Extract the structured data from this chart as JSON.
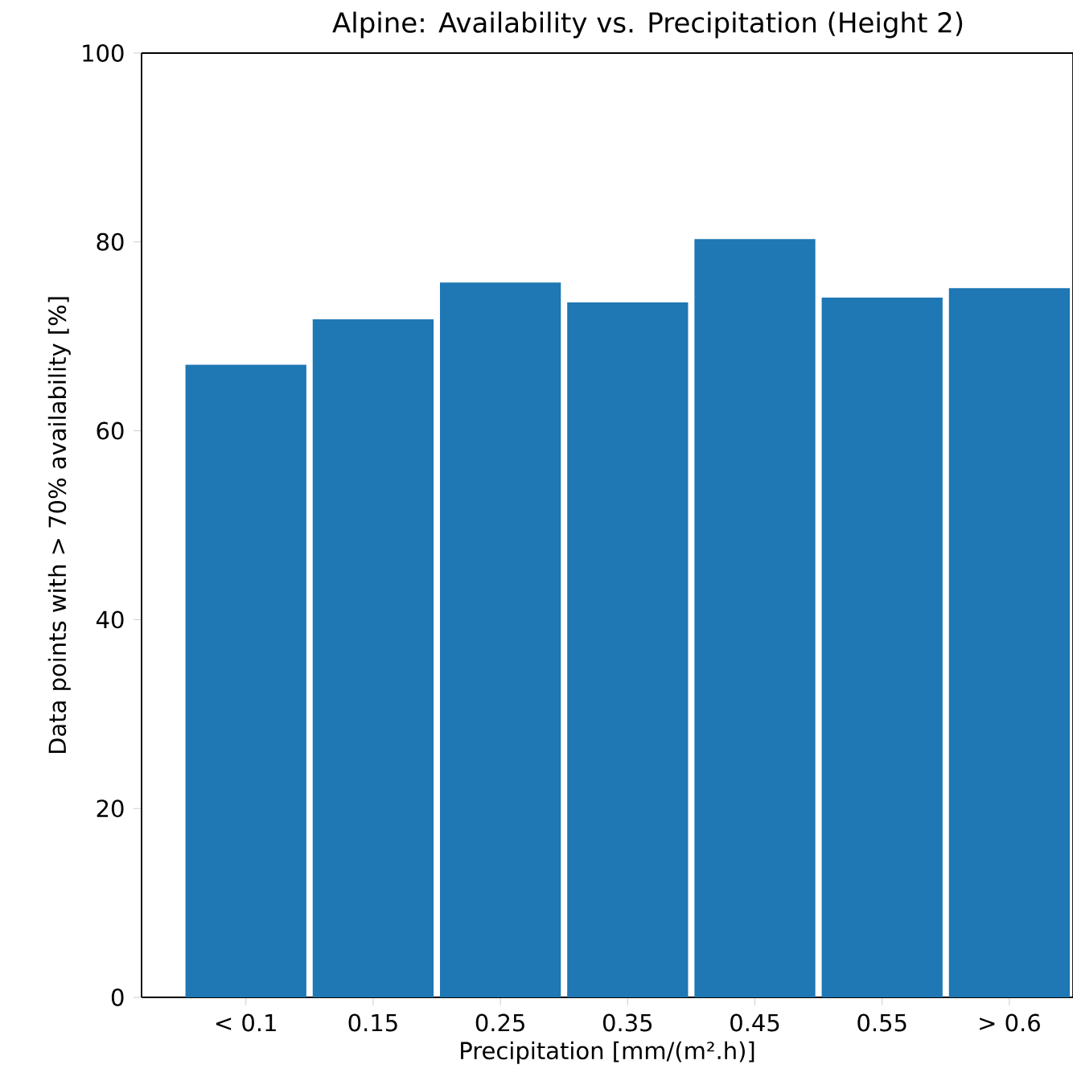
{
  "chart_data": {
    "type": "bar",
    "title": "Alpine: Availability vs. Precipitation (Height 2)",
    "xlabel": "Precipitation [mm/(m².h)]",
    "ylabel": "Data points with > 70% availability [%]",
    "categories": [
      "< 0.1",
      "0.15",
      "0.25",
      "0.35",
      "0.45",
      "0.55",
      "> 0.6"
    ],
    "values": [
      67.0,
      71.8,
      75.7,
      73.6,
      80.3,
      74.1,
      75.1
    ],
    "color": "#1f77b4",
    "ylim": [
      0,
      100
    ],
    "yticks": [
      0,
      20,
      40,
      60,
      80,
      100
    ]
  }
}
